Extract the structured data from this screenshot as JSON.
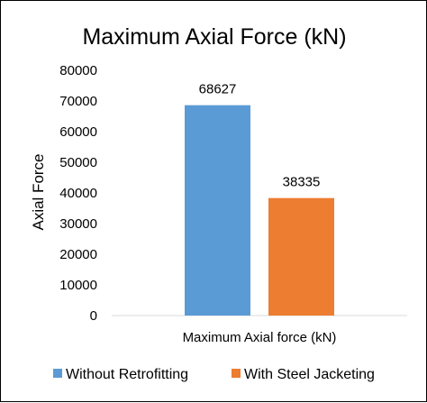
{
  "chart_data": {
    "type": "bar",
    "title": "Maximum Axial Force (kN)",
    "xlabel": "Maximum Axial force (kN)",
    "ylabel": "Axial Force",
    "ylim": [
      0,
      80000
    ],
    "yticks": [
      "0",
      "10000",
      "20000",
      "30000",
      "40000",
      "50000",
      "60000",
      "70000",
      "80000"
    ],
    "grid": false,
    "legend_position": "bottom",
    "categories": [
      "Maximum Axial force (kN)"
    ],
    "series": [
      {
        "name": "Without Retrofitting",
        "values": [
          68627
        ],
        "label": "68627",
        "color": "#5B9BD5"
      },
      {
        "name": "With Steel Jacketing",
        "values": [
          38335
        ],
        "label": "38335",
        "color": "#ED7D31"
      }
    ]
  }
}
